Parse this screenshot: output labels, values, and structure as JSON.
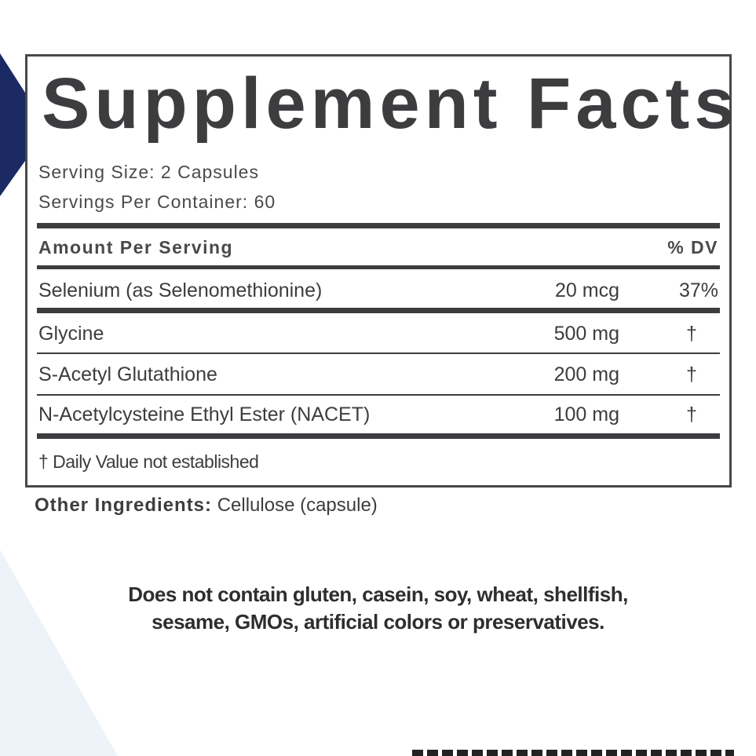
{
  "label": {
    "title": "Supplement Facts",
    "serving_size": "Serving Size: 2 Capsules",
    "servings_per_container": "Servings Per Container: 60",
    "header": {
      "amount": "Amount Per Serving",
      "dv": "% DV"
    },
    "rows": [
      {
        "name": "Selenium (as Selenomethionine)",
        "amount": "20 mcg",
        "dv": "37%"
      },
      {
        "name": "Glycine",
        "amount": "500 mg",
        "dv": "†"
      },
      {
        "name": "S-Acetyl Glutathione",
        "amount": "200 mg",
        "dv": "†"
      },
      {
        "name": "N-Acetylcysteine Ethyl Ester (NACET)",
        "amount": "100 mg",
        "dv": "†"
      }
    ],
    "footnote": "† Daily Value not established"
  },
  "other_ingredients": {
    "label": "Other Ingredients:",
    "value": "Cellulose (capsule)"
  },
  "allergen": {
    "line1": "Does not contain gluten, casein, soy, wheat, shellfish,",
    "line2": "sesame, GMOs, artificial colors or preservatives."
  },
  "colors": {
    "navy": "#1c2a63",
    "text": "#3d3d40",
    "light_blue": "#eef3fa"
  }
}
